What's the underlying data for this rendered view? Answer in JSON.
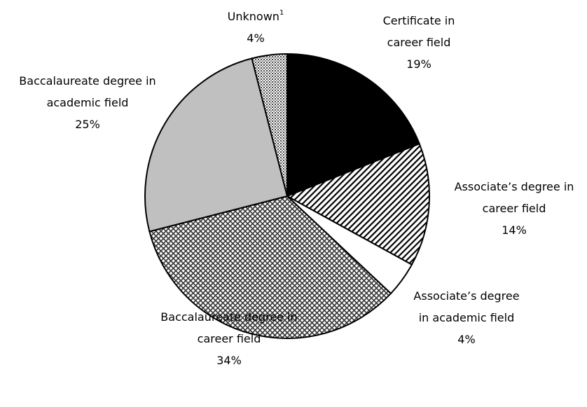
{
  "chart_data": {
    "type": "pie",
    "categories": [
      "Certificate in career field",
      "Associate’s degree in career field",
      "Associate’s degree in academic field",
      "Baccalaureate degree in career field",
      "Baccalaureate degree in academic field",
      "Unknown"
    ],
    "notes": [
      null,
      null,
      null,
      null,
      null,
      "1"
    ],
    "values": [
      19,
      14,
      4,
      34,
      25,
      4
    ],
    "value_labels": [
      "19%",
      "14%",
      "4%",
      "34%",
      "25%",
      "4%"
    ],
    "colors": [
      "#000000",
      "#ffffff",
      "#ffffff",
      "#ffffff",
      "#c0c0c0",
      "#ffffff"
    ],
    "patterns": [
      "solid",
      "hatch",
      "solid",
      "crosshatch",
      "solid",
      "dots"
    ]
  }
}
